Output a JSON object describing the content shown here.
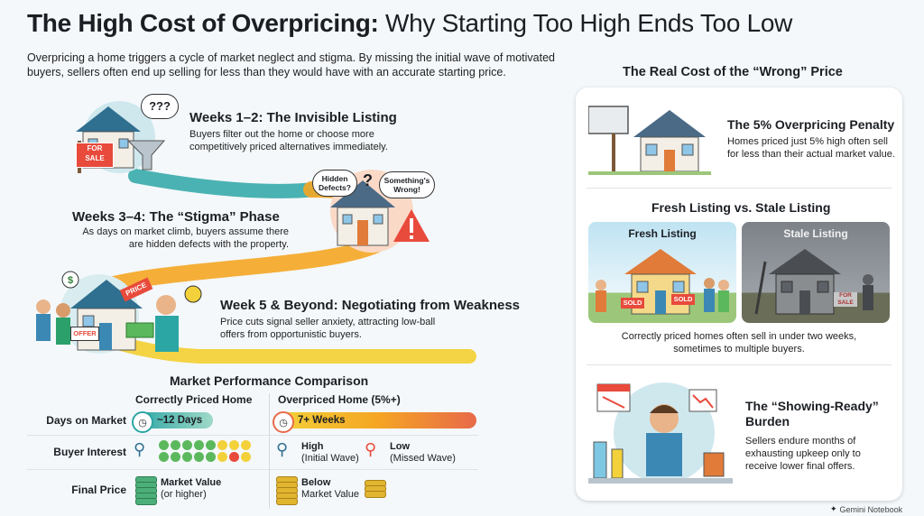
{
  "title_bold": "The High Cost of Overpricing:",
  "title_rest": " Why Starting Too High Ends Too Low",
  "intro": "Overpricing a home triggers a cycle of market neglect and stigma. By missing the initial wave of motivated buyers, sellers often end up selling for less than they would have with an accurate starting price.",
  "stages": [
    {
      "title": "Weeks 1–2: The Invisible Listing",
      "desc": "Buyers filter out the home or choose more competitively priced alternatives immediately.",
      "sign": "FOR SALE",
      "bubble": "???"
    },
    {
      "title": "Weeks 3–4: The “Stigma” Phase",
      "desc": "As days on market climb, buyers assume there are hidden defects with the property.",
      "bubble_left": "Hidden Defects?",
      "bubble_right": "Something's Wrong!",
      "mark": "?"
    },
    {
      "title": "Week 5 & Beyond: Negotiating from Weakness",
      "desc": "Price cuts signal seller anxiety, attracting low-ball offers from opportunistic buyers.",
      "tag": "PRICE",
      "offer": "OFFER"
    }
  ],
  "comparison": {
    "title": "Market Performance Comparison",
    "col_left": "Correctly Priced Home",
    "col_right": "Overpriced Home (5%+)",
    "rows": {
      "days": {
        "label": "Days on Market",
        "left": "~12 Days",
        "right": "7+ Weeks"
      },
      "interest": {
        "label": "Buyer Interest",
        "right_high": "High",
        "right_high_sub": "(Initial Wave)",
        "right_low": "Low",
        "right_low_sub": "(Missed Wave)"
      },
      "price": {
        "label": "Final Price",
        "left": "Market Value",
        "left_sub": "(or higher)",
        "right": "Below",
        "right_sub": "Market Value"
      }
    }
  },
  "real_cost": {
    "title": "The Real Cost of the “Wrong” Price",
    "penalty_title": "The 5% Overpricing Penalty",
    "penalty_desc": "Homes priced just 5% high often sell for less than their actual market value.",
    "fresh_vs_stale_title": "Fresh Listing vs. Stale Listing",
    "fresh_label": "Fresh Listing",
    "stale_label": "Stale Listing",
    "sold_1": "SOLD",
    "sold_2": "SOLD",
    "stale_sign": "FOR SALE",
    "fresh_desc": "Correctly priced homes often sell in under two weeks, sometimes to multiple buyers.",
    "burden_title": "The “Showing-Ready” Burden",
    "burden_desc": "Sellers endure months of exhausting upkeep only to receive lower final offers."
  },
  "footer": "Gemini Notebook",
  "colors": {
    "orange": "#f5a623",
    "teal": "#2ca6a4",
    "red": "#e84a3b",
    "yellow": "#f3d13a"
  }
}
